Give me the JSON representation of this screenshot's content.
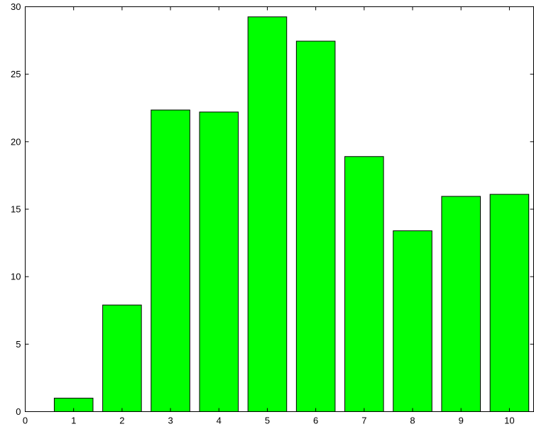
{
  "chart_data": {
    "type": "bar",
    "title": "",
    "xlabel": "",
    "ylabel": "",
    "categories": [
      "1",
      "2",
      "3",
      "4",
      "5",
      "6",
      "7",
      "8",
      "9",
      "10"
    ],
    "x": [
      1,
      2,
      3,
      4,
      5,
      6,
      7,
      8,
      9,
      10
    ],
    "values": [
      1.0,
      7.9,
      22.35,
      22.2,
      29.25,
      27.45,
      18.9,
      13.4,
      15.95,
      16.1
    ],
    "xlim": [
      0,
      10.5
    ],
    "ylim": [
      0,
      30
    ],
    "xticks": [
      0,
      1,
      2,
      3,
      4,
      5,
      6,
      7,
      8,
      9,
      10
    ],
    "yticks": [
      0,
      5,
      10,
      15,
      20,
      25,
      30
    ],
    "grid": false,
    "bar_color": "#00ff00",
    "edge_color": "#000000"
  }
}
